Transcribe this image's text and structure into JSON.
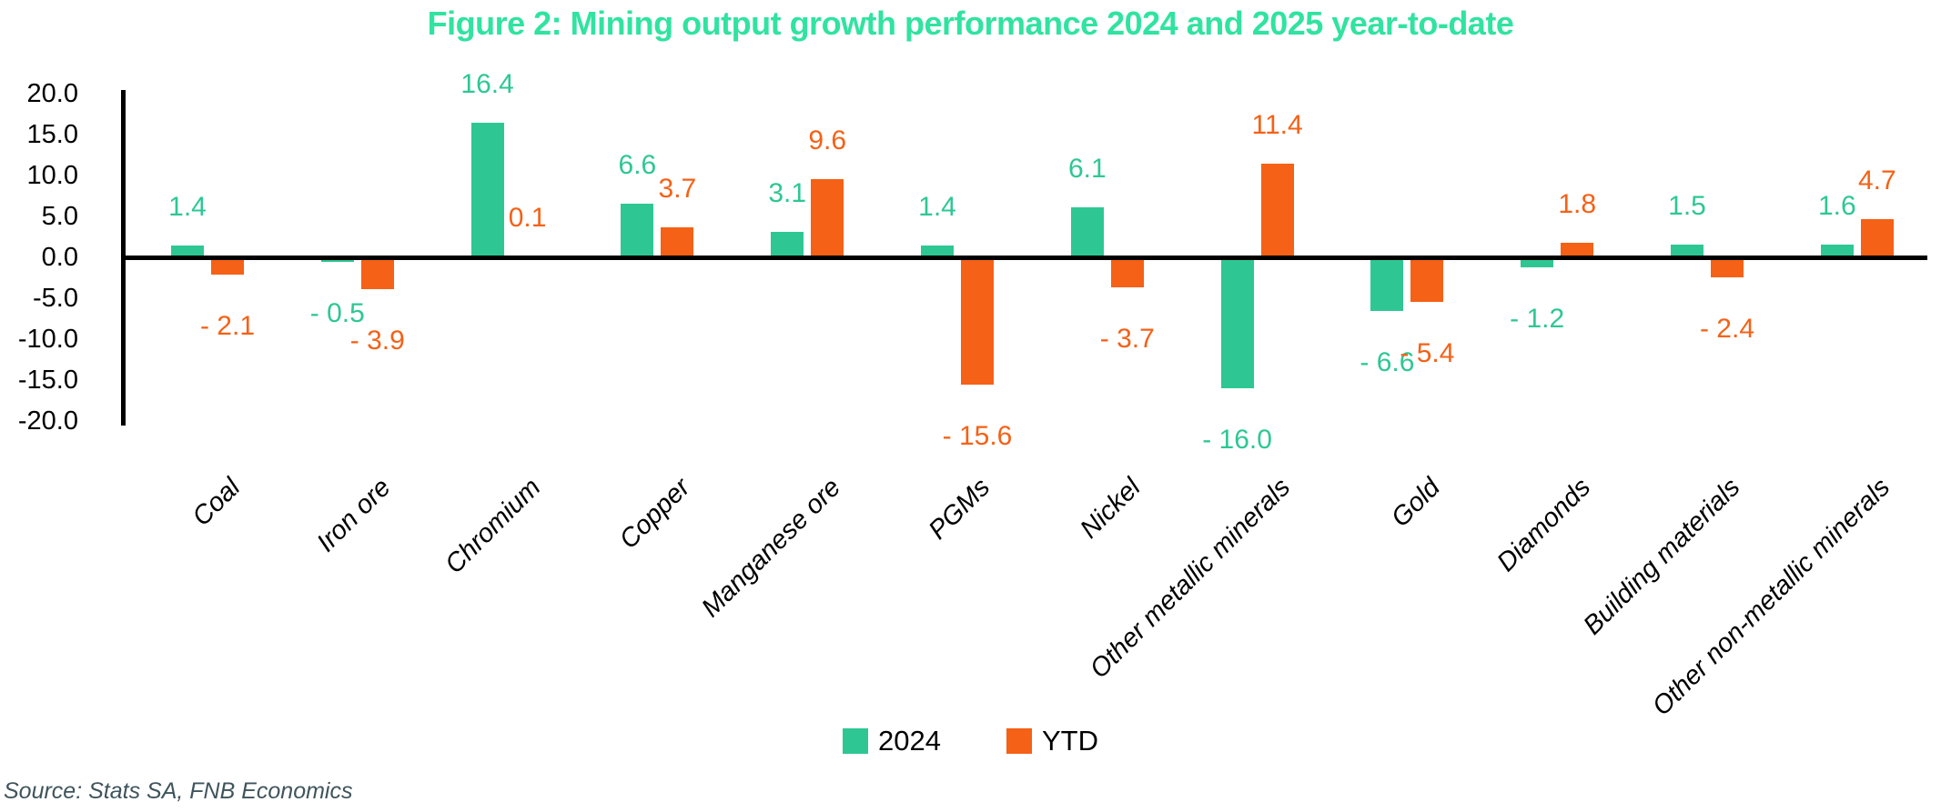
{
  "header": {
    "title": "Figure 2: Mining output growth performance 2024 and 2025 year-to-date"
  },
  "footer": {
    "source": "Source: Stats SA, FNB Economics"
  },
  "colors": {
    "series_2024": "#2EC794",
    "series_ytd": "#F56116",
    "title_text": "#30E3A0",
    "axis": "#000000",
    "source_text": "#3F545C"
  },
  "legend": {
    "items": [
      {
        "label": "2024",
        "color": "#2EC794"
      },
      {
        "label": "YTD",
        "color": "#F56116"
      }
    ]
  },
  "chart_data": {
    "type": "bar",
    "title": "Figure 2: Mining output growth performance 2024 and 2025 year-to-date",
    "categories": [
      "Coal",
      "Iron ore",
      "Chromium",
      "Copper",
      "Manganese ore",
      "PGMs",
      "Nickel",
      "Other metallic minerals",
      "Gold",
      "Diamonds",
      "Building materials",
      "Other non-metallic minerals"
    ],
    "series": [
      {
        "name": "2024",
        "color": "#2EC794",
        "values": [
          1.4,
          -0.5,
          16.4,
          6.6,
          3.1,
          1.4,
          6.1,
          -16.0,
          -6.6,
          -1.2,
          1.5,
          1.6
        ]
      },
      {
        "name": "YTD",
        "color": "#F56116",
        "values": [
          -2.1,
          -3.9,
          0.1,
          3.7,
          9.6,
          -15.6,
          -3.7,
          11.4,
          -5.4,
          1.8,
          -2.4,
          4.7
        ]
      }
    ],
    "ylim": [
      -20,
      20
    ],
    "y_ticks": [
      20.0,
      15.0,
      10.0,
      5.0,
      0.0,
      -5.0,
      -10.0,
      -15.0,
      -20.0
    ],
    "xlabel": "",
    "ylabel": "",
    "grid": false,
    "legend_position": "bottom",
    "data_label_format": "one-decimal, negatives shown as '- n.n' below bars"
  }
}
